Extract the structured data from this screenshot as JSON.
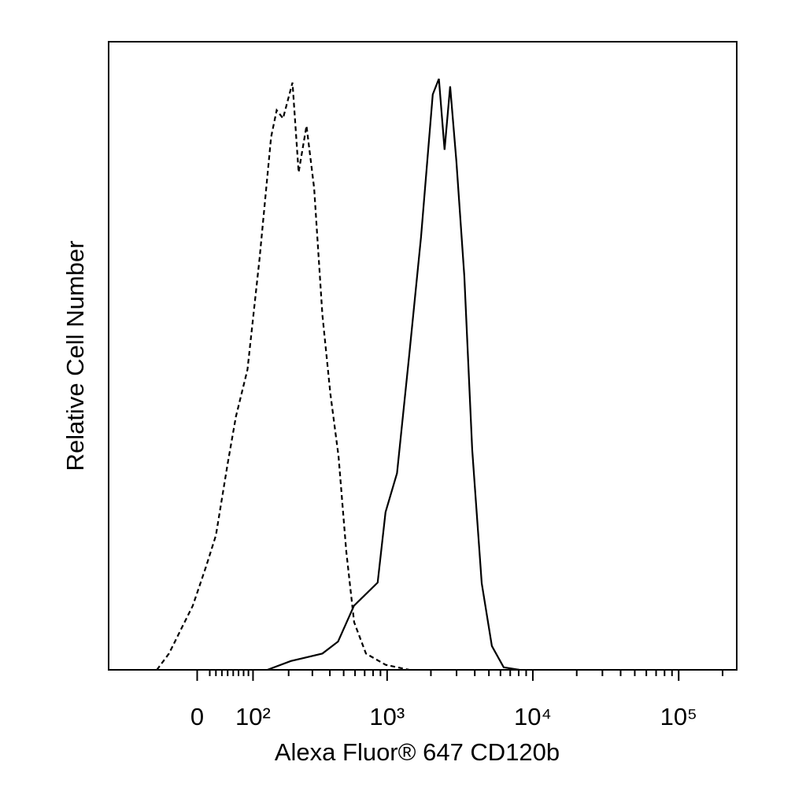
{
  "chart_data": {
    "type": "line",
    "xscale": "asinh",
    "xlabel": "Alexa Fluor® 647 CD120b",
    "ylabel": "Relative Cell Number",
    "xlim": [
      -190,
      250000
    ],
    "ylim": [
      0,
      100
    ],
    "xticks": [
      0,
      {
        "value": 100,
        "label": "10²"
      },
      {
        "value": 1000,
        "label": "10³"
      },
      {
        "value": 10000,
        "label": "10⁴"
      },
      {
        "value": 100000,
        "label": "10⁵"
      }
    ],
    "xminorticks": [
      20,
      30,
      40,
      50,
      60,
      70,
      80,
      90,
      200,
      300,
      400,
      500,
      600,
      700,
      800,
      900,
      2000,
      3000,
      4000,
      5000,
      6000,
      7000,
      8000,
      9000,
      20000,
      30000,
      40000,
      50000,
      60000,
      70000,
      80000,
      90000,
      200000
    ],
    "series": [
      {
        "color": "#000000",
        "dashed": true,
        "x": [
          -68,
          -46,
          -26,
          -7,
          14,
          30,
          50,
          65,
          88,
          115,
          145,
          161,
          181,
          214,
          238,
          272,
          309,
          354,
          403,
          460,
          521,
          591,
          714,
          975,
          1419
        ],
        "values": [
          0,
          2.6,
          6.4,
          10.2,
          16.4,
          21.4,
          32.8,
          40.3,
          47.8,
          65.4,
          84.8,
          89.1,
          87.8,
          93.5,
          79.2,
          86.6,
          76.7,
          56.5,
          44.0,
          34.0,
          18.9,
          7.6,
          2.6,
          0.8,
          0
        ]
      },
      {
        "color": "#000000",
        "dashed": false,
        "x": [
          135,
          208,
          354,
          457,
          590,
          861,
          975,
          1170,
          1420,
          1710,
          2060,
          2270,
          2480,
          2710,
          2990,
          3390,
          3840,
          4460,
          5240,
          6310,
          8100
        ],
        "values": [
          0,
          1.4,
          2.6,
          4.5,
          10.2,
          13.9,
          25.1,
          31.3,
          50.1,
          68.9,
          91.6,
          94.1,
          82.8,
          92.9,
          81.0,
          62.7,
          35.1,
          13.8,
          3.8,
          0.4,
          0
        ]
      }
    ]
  }
}
